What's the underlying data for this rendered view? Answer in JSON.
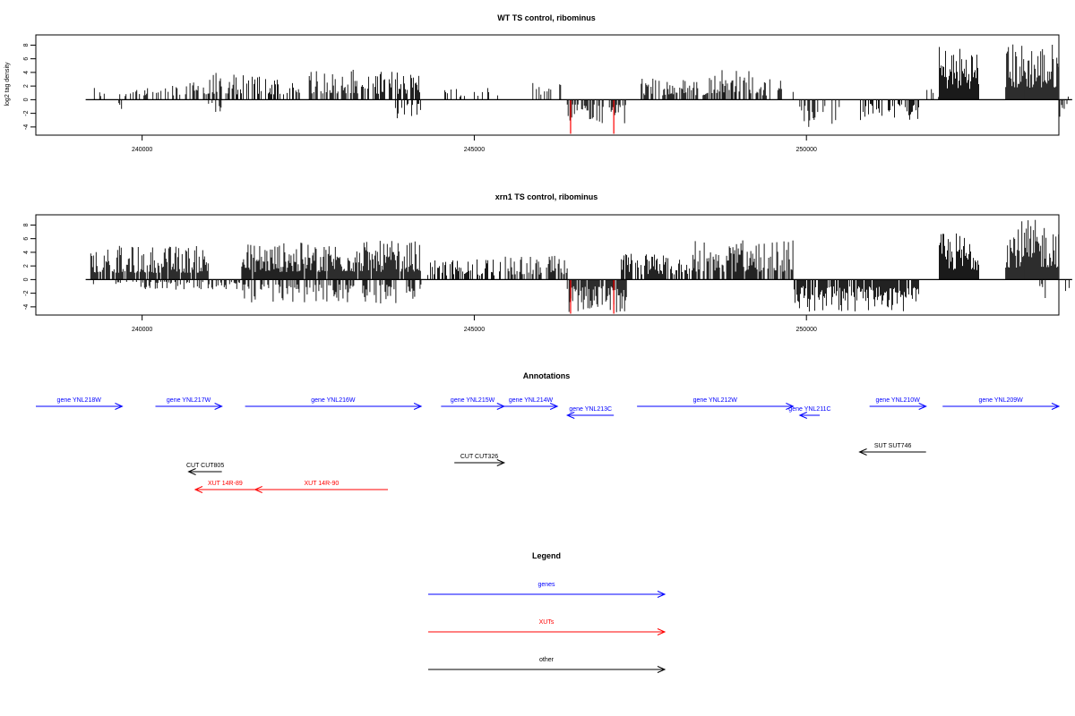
{
  "chart_data": [
    {
      "type": "bar",
      "title": "WT TS control, ribominus",
      "xlabel": "",
      "ylabel": "log2 tag density",
      "xlim": [
        238400,
        253800
      ],
      "ylim": [
        -5.2,
        9.5
      ],
      "yticks": [
        "8",
        "6",
        "4",
        "2",
        "0",
        "-2",
        "-4"
      ],
      "ytick_values": [
        8,
        6,
        4,
        2,
        0,
        -2,
        -4
      ],
      "xticks": [
        "240000",
        "245000",
        "250000"
      ],
      "xtick_values": [
        240000,
        245000,
        250000
      ],
      "segments_pos": [
        {
          "start": 239200,
          "end": 239450,
          "max": 2.0,
          "density": 0.3
        },
        {
          "start": 239650,
          "end": 240600,
          "max": 2.2,
          "density": 0.35
        },
        {
          "start": 240600,
          "end": 241400,
          "max": 4.0,
          "density": 0.5
        },
        {
          "start": 241400,
          "end": 242300,
          "max": 3.8,
          "density": 0.55
        },
        {
          "start": 242300,
          "end": 243300,
          "max": 4.6,
          "density": 0.55
        },
        {
          "start": 243300,
          "end": 244200,
          "max": 4.3,
          "density": 0.5
        },
        {
          "start": 244500,
          "end": 245400,
          "max": 1.8,
          "density": 0.25
        },
        {
          "start": 245800,
          "end": 246300,
          "max": 2.5,
          "density": 0.3
        },
        {
          "start": 247500,
          "end": 248500,
          "max": 3.2,
          "density": 0.55
        },
        {
          "start": 248500,
          "end": 249300,
          "max": 4.6,
          "density": 0.5
        },
        {
          "start": 249300,
          "end": 249800,
          "max": 3.0,
          "density": 0.3
        },
        {
          "start": 251800,
          "end": 252000,
          "max": 2.0,
          "density": 0.2
        },
        {
          "start": 252000,
          "end": 252600,
          "max": 8.0,
          "density": 1.0
        },
        {
          "start": 253000,
          "end": 253800,
          "max": 8.5,
          "density": 1.0
        },
        {
          "start": 253900,
          "end": 254000,
          "max": 1.6,
          "density": 0.2
        }
      ],
      "segments_neg": [
        {
          "start": 239650,
          "end": 239700,
          "min": -1.5,
          "density": 0.3
        },
        {
          "start": 241000,
          "end": 241200,
          "min": -2.0,
          "density": 0.3
        },
        {
          "start": 243800,
          "end": 244200,
          "min": -3.0,
          "density": 0.5
        },
        {
          "start": 246400,
          "end": 247300,
          "min": -3.5,
          "density": 0.55
        },
        {
          "start": 249900,
          "end": 250500,
          "min": -4.0,
          "density": 0.4
        },
        {
          "start": 250800,
          "end": 251700,
          "min": -3.0,
          "density": 0.45
        },
        {
          "start": 253800,
          "end": 253950,
          "min": -3.2,
          "density": 0.3
        }
      ],
      "red_lines": [
        {
          "x": 246450,
          "y": -5.0
        },
        {
          "x": 247100,
          "y": -5.0
        }
      ]
    },
    {
      "type": "bar",
      "title": "xrn1 TS control, ribominus",
      "xlabel": "",
      "ylabel": "",
      "xlim": [
        238400,
        253800
      ],
      "ylim": [
        -5.2,
        9.5
      ],
      "yticks": [
        "8",
        "6",
        "4",
        "2",
        "0",
        "-2",
        "-4"
      ],
      "ytick_values": [
        8,
        6,
        4,
        2,
        0,
        -2,
        -4
      ],
      "xticks": [
        "240000",
        "245000",
        "250000"
      ],
      "xtick_values": [
        240000,
        245000,
        250000
      ],
      "segments_pos": [
        {
          "start": 239200,
          "end": 241000,
          "max": 5.0,
          "density": 0.85
        },
        {
          "start": 241500,
          "end": 242800,
          "max": 5.5,
          "density": 0.95
        },
        {
          "start": 242800,
          "end": 244200,
          "max": 5.7,
          "density": 0.95
        },
        {
          "start": 244300,
          "end": 245400,
          "max": 3.0,
          "density": 0.55
        },
        {
          "start": 245400,
          "end": 246400,
          "max": 3.5,
          "density": 0.6
        },
        {
          "start": 247200,
          "end": 248300,
          "max": 3.8,
          "density": 0.8
        },
        {
          "start": 248300,
          "end": 249800,
          "max": 5.8,
          "density": 0.85
        },
        {
          "start": 252000,
          "end": 252600,
          "max": 7.0,
          "density": 1.0
        },
        {
          "start": 253000,
          "end": 253800,
          "max": 8.8,
          "density": 1.0
        }
      ],
      "segments_neg": [
        {
          "start": 239200,
          "end": 241500,
          "min": -1.5,
          "density": 0.3
        },
        {
          "start": 241500,
          "end": 244200,
          "min": -3.5,
          "density": 0.5
        },
        {
          "start": 246400,
          "end": 247300,
          "min": -4.8,
          "density": 0.9
        },
        {
          "start": 249800,
          "end": 251700,
          "min": -4.8,
          "density": 0.85
        },
        {
          "start": 253500,
          "end": 253600,
          "min": -3.2,
          "density": 0.3
        },
        {
          "start": 253900,
          "end": 254000,
          "min": -2.2,
          "density": 0.3
        }
      ],
      "red_lines": [
        {
          "x": 246450,
          "y": -5.0
        },
        {
          "x": 247100,
          "y": -5.0
        }
      ]
    },
    {
      "type": "annotation",
      "title": "Annotations",
      "features": [
        {
          "label": "gene YNL218W",
          "category": "genes",
          "start": 238400,
          "end": 239700,
          "dir": "right",
          "row": 0
        },
        {
          "label": "gene YNL217W",
          "category": "genes",
          "start": 240200,
          "end": 241200,
          "dir": "right",
          "row": 0
        },
        {
          "label": "gene YNL216W",
          "category": "genes",
          "start": 241550,
          "end": 244200,
          "dir": "right",
          "row": 0
        },
        {
          "label": "gene YNL215W",
          "category": "genes",
          "start": 244500,
          "end": 245450,
          "dir": "right",
          "row": 0
        },
        {
          "label": "gene YNL214W",
          "category": "genes",
          "start": 245450,
          "end": 246250,
          "dir": "right",
          "row": 0
        },
        {
          "label": "gene YNL213C",
          "category": "genes",
          "start": 246400,
          "end": 247100,
          "dir": "left",
          "row": 1
        },
        {
          "label": "gene YNL212W",
          "category": "genes",
          "start": 247450,
          "end": 249800,
          "dir": "right",
          "row": 0
        },
        {
          "label": "gene YNL211C",
          "category": "genes",
          "start": 249900,
          "end": 250200,
          "dir": "left",
          "row": 1
        },
        {
          "label": "gene YNL210W",
          "category": "genes",
          "start": 250950,
          "end": 251800,
          "dir": "right",
          "row": 0
        },
        {
          "label": "gene YNL209W",
          "category": "genes",
          "start": 252050,
          "end": 253900,
          "dir": "right",
          "row": 0
        },
        {
          "label": "SUT SUT746",
          "category": "other",
          "start": 250800,
          "end": 251800,
          "dir": "left",
          "row": 2
        },
        {
          "label": "CUT CUT326",
          "category": "other",
          "start": 244700,
          "end": 245450,
          "dir": "right",
          "row": 3
        },
        {
          "label": "CUT CUT805",
          "category": "other",
          "start": 240700,
          "end": 241200,
          "dir": "left",
          "row": 4
        },
        {
          "label": "XUT 14R-89",
          "category": "XUTs",
          "start": 240800,
          "end": 241700,
          "dir": "left",
          "row": 5
        },
        {
          "label": "XUT 14R-90",
          "category": "XUTs",
          "start": 241700,
          "end": 243700,
          "dir": "left",
          "row": 5
        }
      ]
    },
    {
      "type": "legend",
      "title": "Legend",
      "entries": [
        {
          "label": "genes",
          "color": "#0000ff"
        },
        {
          "label": "XUTs",
          "color": "#ff0000"
        },
        {
          "label": "other",
          "color": "#000000"
        }
      ]
    }
  ],
  "colors": {
    "genes": "#0000ff",
    "XUTs": "#ff0000",
    "other": "#000000",
    "bars": "#000000",
    "red_bars": "#ff0000"
  }
}
